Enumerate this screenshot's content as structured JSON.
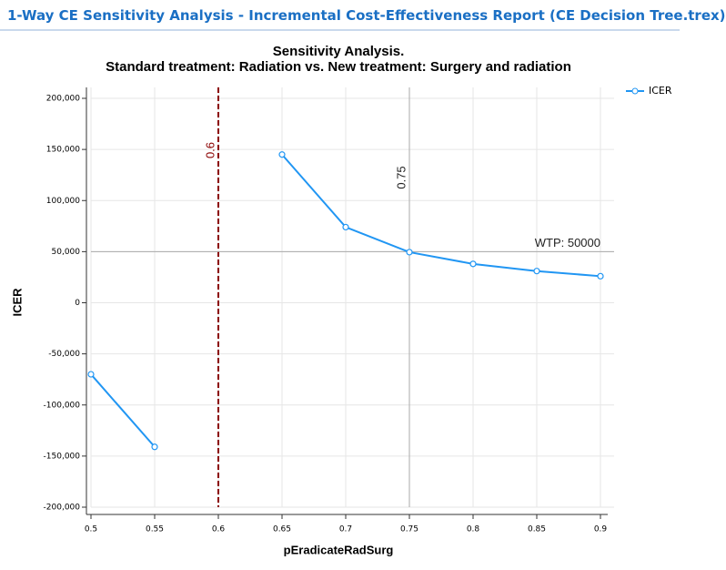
{
  "header": {
    "title": "1-Way CE Sensitivity Analysis - Incremental Cost-Effectiveness Report (CE Decision Tree.trex)"
  },
  "chart_data": {
    "type": "line",
    "title": "Sensitivity Analysis.",
    "subtitle": "Standard treatment: Radiation vs. New treatment: Surgery and radiation",
    "x_label": "pEradicateRadSurg",
    "y_label": "ICER",
    "x": [
      0.5,
      0.55,
      0.6,
      0.65,
      0.7,
      0.75,
      0.8,
      0.85,
      0.9
    ],
    "series": [
      {
        "name": "ICER",
        "color": "#2196f3",
        "values": [
          -70000,
          -141000,
          null,
          145000,
          74000,
          49500,
          38000,
          31000,
          26000
        ]
      }
    ],
    "xlim": [
      0.5,
      0.9
    ],
    "xticks": [
      0.5,
      0.55,
      0.6,
      0.65,
      0.7,
      0.75,
      0.8,
      0.85,
      0.9
    ],
    "ylim": [
      -200000,
      200000
    ],
    "yticks": [
      {
        "value": -200000,
        "label": "-200,000"
      },
      {
        "value": -150000,
        "label": "-150,000"
      },
      {
        "value": -100000,
        "label": "-100,000"
      },
      {
        "value": -50000,
        "label": "-50,000"
      },
      0,
      {
        "value": 50000,
        "label": "50,000"
      },
      {
        "value": 100000,
        "label": "100,000"
      },
      {
        "value": 150000,
        "label": "150,000"
      },
      {
        "value": 200000,
        "label": "200,000"
      }
    ],
    "grid": true,
    "legend": "top-right",
    "reference_lines": [
      {
        "axis": "x",
        "value": 0.6,
        "color": "#8b0000",
        "dashed": true
      },
      {
        "axis": "x",
        "value": 0.75,
        "color": "#aaaaaa",
        "dashed": false
      },
      {
        "axis": "y",
        "value": 50000,
        "label": "WTP: 50000",
        "color": "#aaaaaa",
        "dashed": false
      }
    ]
  }
}
